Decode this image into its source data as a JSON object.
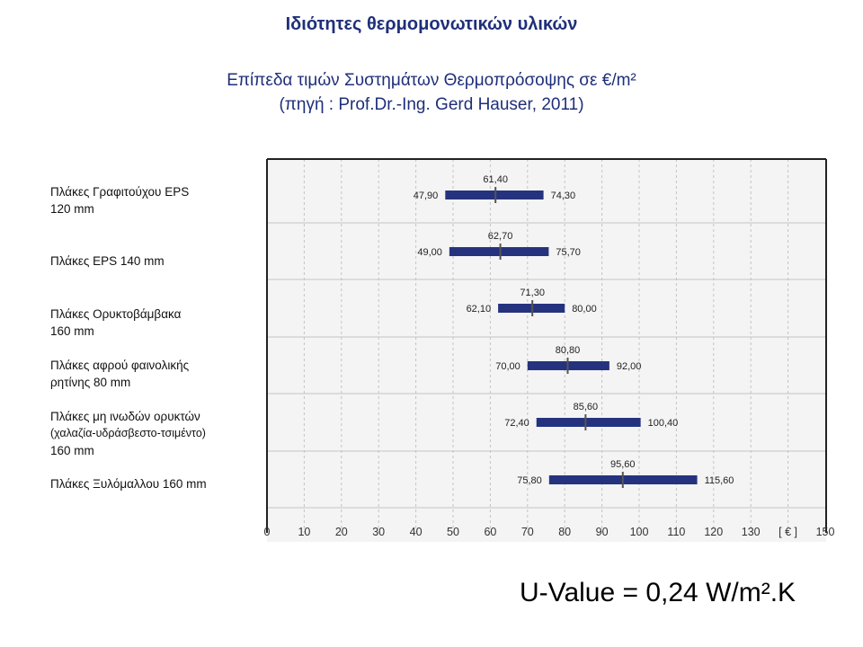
{
  "page": {
    "title": "Ιδιότητες θερμομονωτικών υλικών",
    "subtitle_line1": "Επίπεδα τιμών Συστημάτων Θερμοπρόσοψης σε €/m²",
    "subtitle_line2": "(πηγή : Prof.Dr.-Ing. Gerd Hauser, 2011)",
    "u_value": "U-Value = 0,24 W/m².K"
  },
  "colors": {
    "bar": "#25337f",
    "title": "#1f2f7a",
    "plot_bg": "#f4f4f4",
    "grid": "#c4c4c4"
  },
  "chart_data": {
    "type": "range-bar",
    "orientation": "horizontal",
    "categories": [
      [
        "Πλάκες Γραφιτούχου EPS",
        "120 mm"
      ],
      [
        "Πλάκες EPS 140 mm"
      ],
      [
        "Πλάκες Ορυκτοβάμβακα",
        "160 mm"
      ],
      [
        "Πλάκες αφρού φαινολικής",
        "ρητίνης 80 mm"
      ],
      [
        "Πλάκες μη ινωδών ορυκτών",
        "(χαλαζία-υδράσβεστο-τσιμέντο)",
        "160 mm"
      ],
      [
        "Πλάκες Ξυλόμαλλου 160 mm"
      ]
    ],
    "series": [
      {
        "min": [
          47.9,
          49.0,
          62.1,
          70.0,
          72.4,
          75.8
        ],
        "mid": [
          61.4,
          62.7,
          71.3,
          80.8,
          85.6,
          95.6
        ],
        "max": [
          74.3,
          75.7,
          80.0,
          92.0,
          100.4,
          115.6
        ]
      }
    ],
    "labels": {
      "min": [
        "47,90",
        "49,00",
        "62,10",
        "70,00",
        "72,40",
        "75,80"
      ],
      "mid": [
        "61,40",
        "62,70",
        "71,30",
        "80,80",
        "85,60",
        "95,60"
      ],
      "max": [
        "74,30",
        "75,70",
        "80,00",
        "92,00",
        "100,40",
        "115,60"
      ]
    },
    "x_ticks": [
      "0",
      "10",
      "20",
      "30",
      "40",
      "50",
      "60",
      "70",
      "80",
      "90",
      "100",
      "110",
      "120",
      "130",
      "[ € ]",
      "150"
    ],
    "xlim": [
      0,
      150
    ],
    "grid": true
  }
}
